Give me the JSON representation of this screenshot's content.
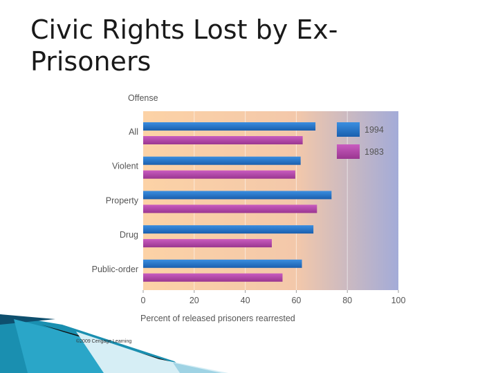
{
  "slide": {
    "title": "Civic Rights Lost by Ex-Prisoners",
    "credit": "©2009 Cengage Learning"
  },
  "colors": {
    "series_1994": "#1f6fc4",
    "series_1983": "#b044a8",
    "bg_left": "#fcd2a6",
    "bg_right": "#a3abd8"
  },
  "chart_data": {
    "type": "bar",
    "orientation": "horizontal",
    "title": "",
    "ylabel": "Offense",
    "xlabel": "Percent of released prisoners rearrested",
    "categories": [
      "All",
      "Violent",
      "Property",
      "Drug",
      "Public-order"
    ],
    "series": [
      {
        "name": "1994",
        "values": [
          67.5,
          61.7,
          73.8,
          66.7,
          62.2
        ]
      },
      {
        "name": "1983",
        "values": [
          62.5,
          59.6,
          68.1,
          50.4,
          54.6
        ]
      }
    ],
    "xlim": [
      0,
      100
    ],
    "xticks": [
      0,
      20,
      40,
      60,
      80,
      100
    ],
    "grid": true,
    "legend": "top-right"
  }
}
